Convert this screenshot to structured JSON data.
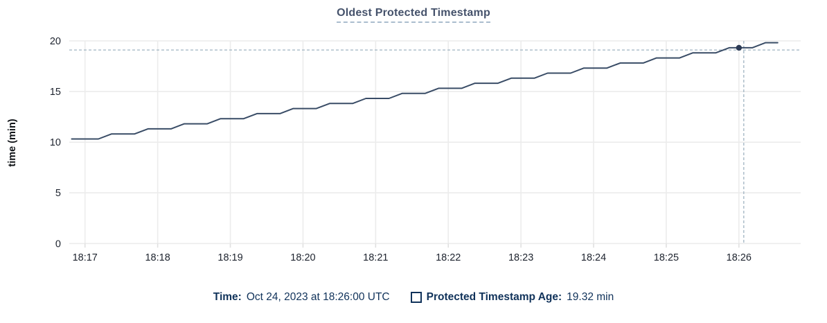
{
  "header": {
    "title": "Oldest Protected Timestamp"
  },
  "footer": {
    "time_label": "Time:",
    "time_value": "Oct 24, 2023 at 18:26:00 UTC",
    "series_label": "Protected Timestamp Age:",
    "series_value": "19.32 min"
  },
  "colors": {
    "line": "#394c66",
    "dot": "#2b3a55",
    "crosshair": "#9fb3c1",
    "grid": "#ececec",
    "axis_tick": "#e0e0e0",
    "tick_text": "#1d232e",
    "title_text": "#45526b",
    "legend_text": "#10325a"
  },
  "chart_data": {
    "type": "line",
    "title": "Oldest Protected Timestamp",
    "xlabel": "",
    "ylabel": "time (min)",
    "ylim": [
      0,
      20
    ],
    "yticks": [
      0,
      5,
      10,
      15,
      20
    ],
    "grid": true,
    "legend_position": "bottom",
    "x_axis": {
      "start_sec": -13,
      "end_sec": 591,
      "base_time": "18:17",
      "tick_seconds": [
        0,
        60,
        120,
        180,
        240,
        300,
        360,
        420,
        480,
        540
      ],
      "tick_labels": [
        "18:17",
        "18:18",
        "18:19",
        "18:20",
        "18:21",
        "18:22",
        "18:23",
        "18:24",
        "18:25",
        "18:26"
      ]
    },
    "series": [
      {
        "name": "Protected Timestamp Age",
        "unit": "min",
        "points": [
          [
            -11,
            10.32
          ],
          [
            -8,
            10.32
          ],
          [
            11,
            10.32
          ],
          [
            22,
            10.82
          ],
          [
            41,
            10.82
          ],
          [
            52,
            11.32
          ],
          [
            71,
            11.32
          ],
          [
            82,
            11.82
          ],
          [
            101,
            11.82
          ],
          [
            112,
            12.32
          ],
          [
            131,
            12.32
          ],
          [
            142,
            12.82
          ],
          [
            161,
            12.82
          ],
          [
            172,
            13.32
          ],
          [
            191,
            13.32
          ],
          [
            202,
            13.82
          ],
          [
            221,
            13.82
          ],
          [
            232,
            14.32
          ],
          [
            251,
            14.32
          ],
          [
            262,
            14.82
          ],
          [
            281,
            14.82
          ],
          [
            292,
            15.32
          ],
          [
            311,
            15.32
          ],
          [
            322,
            15.82
          ],
          [
            341,
            15.82
          ],
          [
            352,
            16.32
          ],
          [
            371,
            16.32
          ],
          [
            382,
            16.82
          ],
          [
            401,
            16.82
          ],
          [
            412,
            17.32
          ],
          [
            431,
            17.32
          ],
          [
            442,
            17.82
          ],
          [
            461,
            17.82
          ],
          [
            472,
            18.32
          ],
          [
            491,
            18.32
          ],
          [
            502,
            18.82
          ],
          [
            521,
            18.82
          ],
          [
            532,
            19.32
          ],
          [
            551,
            19.32
          ],
          [
            562,
            19.82
          ],
          [
            572,
            19.82
          ]
        ]
      }
    ],
    "hover_point": {
      "time_sec": 540,
      "value": 19.32,
      "time_text": "Oct 24, 2023 at 18:26:00 UTC",
      "value_text": "19.32 min"
    },
    "crosshair": {
      "x_sec": 544,
      "y_value": 19.1
    }
  }
}
